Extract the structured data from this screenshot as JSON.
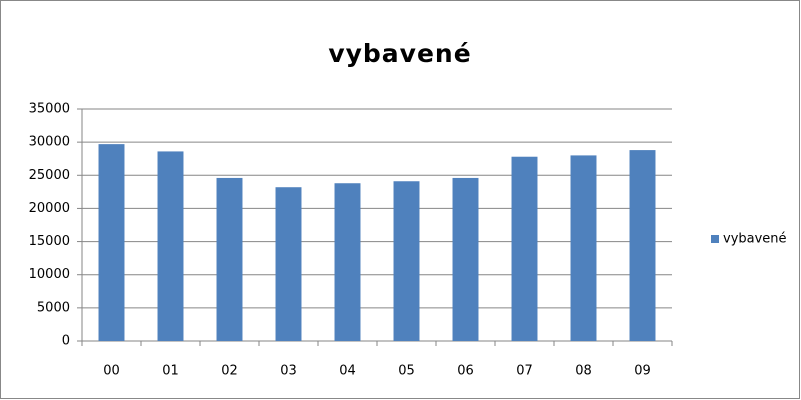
{
  "chart_data": {
    "type": "bar",
    "title": "vybavené",
    "categories": [
      "00",
      "01",
      "02",
      "03",
      "04",
      "05",
      "06",
      "07",
      "08",
      "09"
    ],
    "series": [
      {
        "name": "vybavené",
        "color": "#4f81bd",
        "values": [
          29700,
          28600,
          24600,
          23200,
          23800,
          24100,
          24600,
          27800,
          28000,
          28800
        ]
      }
    ],
    "ylim": [
      0,
      35000
    ],
    "yticks": [
      0,
      5000,
      10000,
      15000,
      20000,
      25000,
      30000,
      35000
    ],
    "grid": true,
    "legend": "right"
  }
}
